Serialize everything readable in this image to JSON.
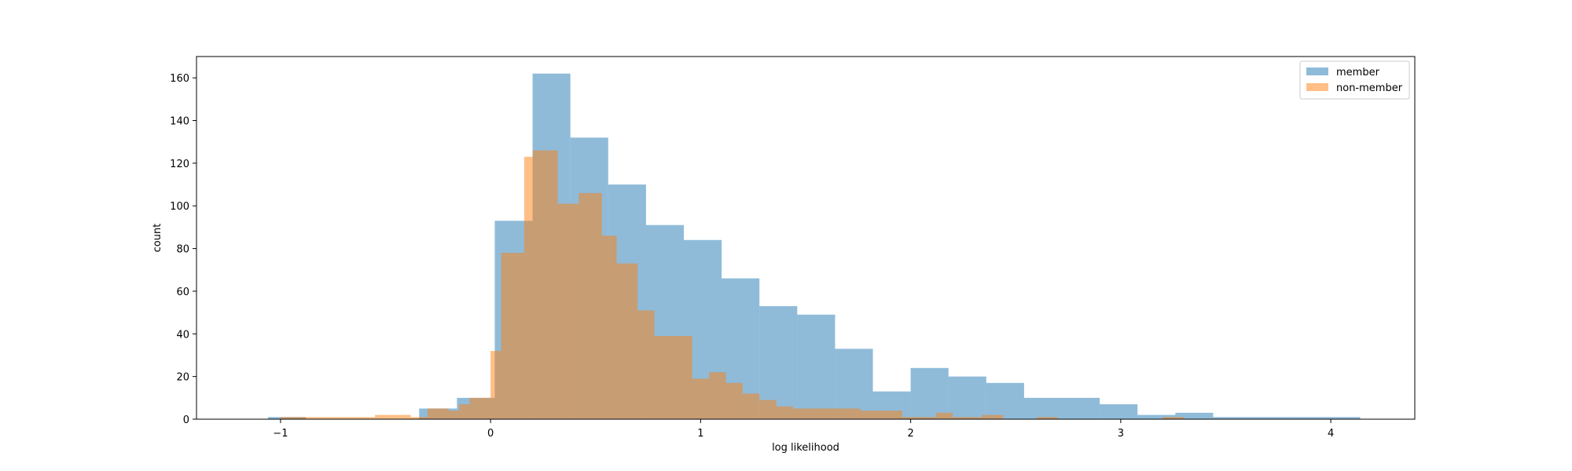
{
  "chart_data": {
    "type": "histogram",
    "xlabel": "log likelihood",
    "ylabel": "count",
    "xlim": [
      -1.4,
      4.4
    ],
    "ylim": [
      0,
      170
    ],
    "xticks": [
      -1,
      0,
      1,
      2,
      3,
      4
    ],
    "yticks": [
      0,
      20,
      40,
      60,
      80,
      100,
      120,
      140,
      160
    ],
    "grid": false,
    "legend_position": "top-right",
    "colors": {
      "member": "#1f77b4",
      "non-member": "#ff7f0e"
    },
    "opacity": 0.5,
    "series": [
      {
        "name": "member",
        "bins": [
          [
            -1.06,
            -0.88,
            1
          ],
          [
            -0.88,
            -0.71,
            0
          ],
          [
            -0.71,
            -0.53,
            0
          ],
          [
            -0.53,
            -0.34,
            0
          ],
          [
            -0.34,
            -0.16,
            5
          ],
          [
            -0.16,
            0.02,
            10
          ],
          [
            0.02,
            0.2,
            93
          ],
          [
            0.2,
            0.38,
            162
          ],
          [
            0.38,
            0.56,
            132
          ],
          [
            0.56,
            0.74,
            110
          ],
          [
            0.74,
            0.92,
            91
          ],
          [
            0.92,
            1.1,
            84
          ],
          [
            1.1,
            1.28,
            66
          ],
          [
            1.28,
            1.46,
            53
          ],
          [
            1.46,
            1.64,
            49
          ],
          [
            1.64,
            1.82,
            33
          ],
          [
            1.82,
            2.0,
            13
          ],
          [
            2.0,
            2.18,
            24
          ],
          [
            2.18,
            2.36,
            20
          ],
          [
            2.36,
            2.54,
            17
          ],
          [
            2.54,
            2.72,
            10
          ],
          [
            2.72,
            2.9,
            10
          ],
          [
            2.9,
            3.08,
            7
          ],
          [
            3.08,
            3.26,
            2
          ],
          [
            3.26,
            3.44,
            3
          ],
          [
            3.44,
            3.62,
            1
          ],
          [
            3.62,
            3.8,
            1
          ],
          [
            3.8,
            3.98,
            1
          ],
          [
            3.98,
            4.14,
            1
          ]
        ]
      },
      {
        "name": "non-member",
        "bins": [
          [
            -1.0,
            -0.82,
            1
          ],
          [
            -0.82,
            -0.55,
            1
          ],
          [
            -0.55,
            -0.38,
            2
          ],
          [
            -0.38,
            -0.3,
            1
          ],
          [
            -0.3,
            -0.2,
            5
          ],
          [
            -0.2,
            -0.15,
            4
          ],
          [
            -0.15,
            -0.1,
            7
          ],
          [
            -0.1,
            0.0,
            10
          ],
          [
            0.0,
            0.05,
            32
          ],
          [
            0.05,
            0.16,
            78
          ],
          [
            0.16,
            0.2,
            123
          ],
          [
            0.2,
            0.32,
            126
          ],
          [
            0.32,
            0.42,
            101
          ],
          [
            0.42,
            0.53,
            106
          ],
          [
            0.53,
            0.6,
            86
          ],
          [
            0.6,
            0.7,
            73
          ],
          [
            0.7,
            0.78,
            51
          ],
          [
            0.78,
            0.96,
            39
          ],
          [
            0.96,
            1.04,
            19
          ],
          [
            1.04,
            1.12,
            22
          ],
          [
            1.12,
            1.2,
            17
          ],
          [
            1.2,
            1.28,
            12
          ],
          [
            1.28,
            1.36,
            9
          ],
          [
            1.36,
            1.44,
            6
          ],
          [
            1.44,
            1.52,
            5
          ],
          [
            1.52,
            1.76,
            5
          ],
          [
            1.76,
            1.96,
            4
          ],
          [
            1.96,
            2.12,
            1
          ],
          [
            2.12,
            2.2,
            3
          ],
          [
            2.2,
            2.34,
            1
          ],
          [
            2.34,
            2.44,
            2
          ],
          [
            2.44,
            2.6,
            0
          ],
          [
            2.6,
            2.7,
            1
          ],
          [
            2.7,
            3.2,
            0
          ],
          [
            3.2,
            3.3,
            1
          ]
        ]
      }
    ]
  }
}
